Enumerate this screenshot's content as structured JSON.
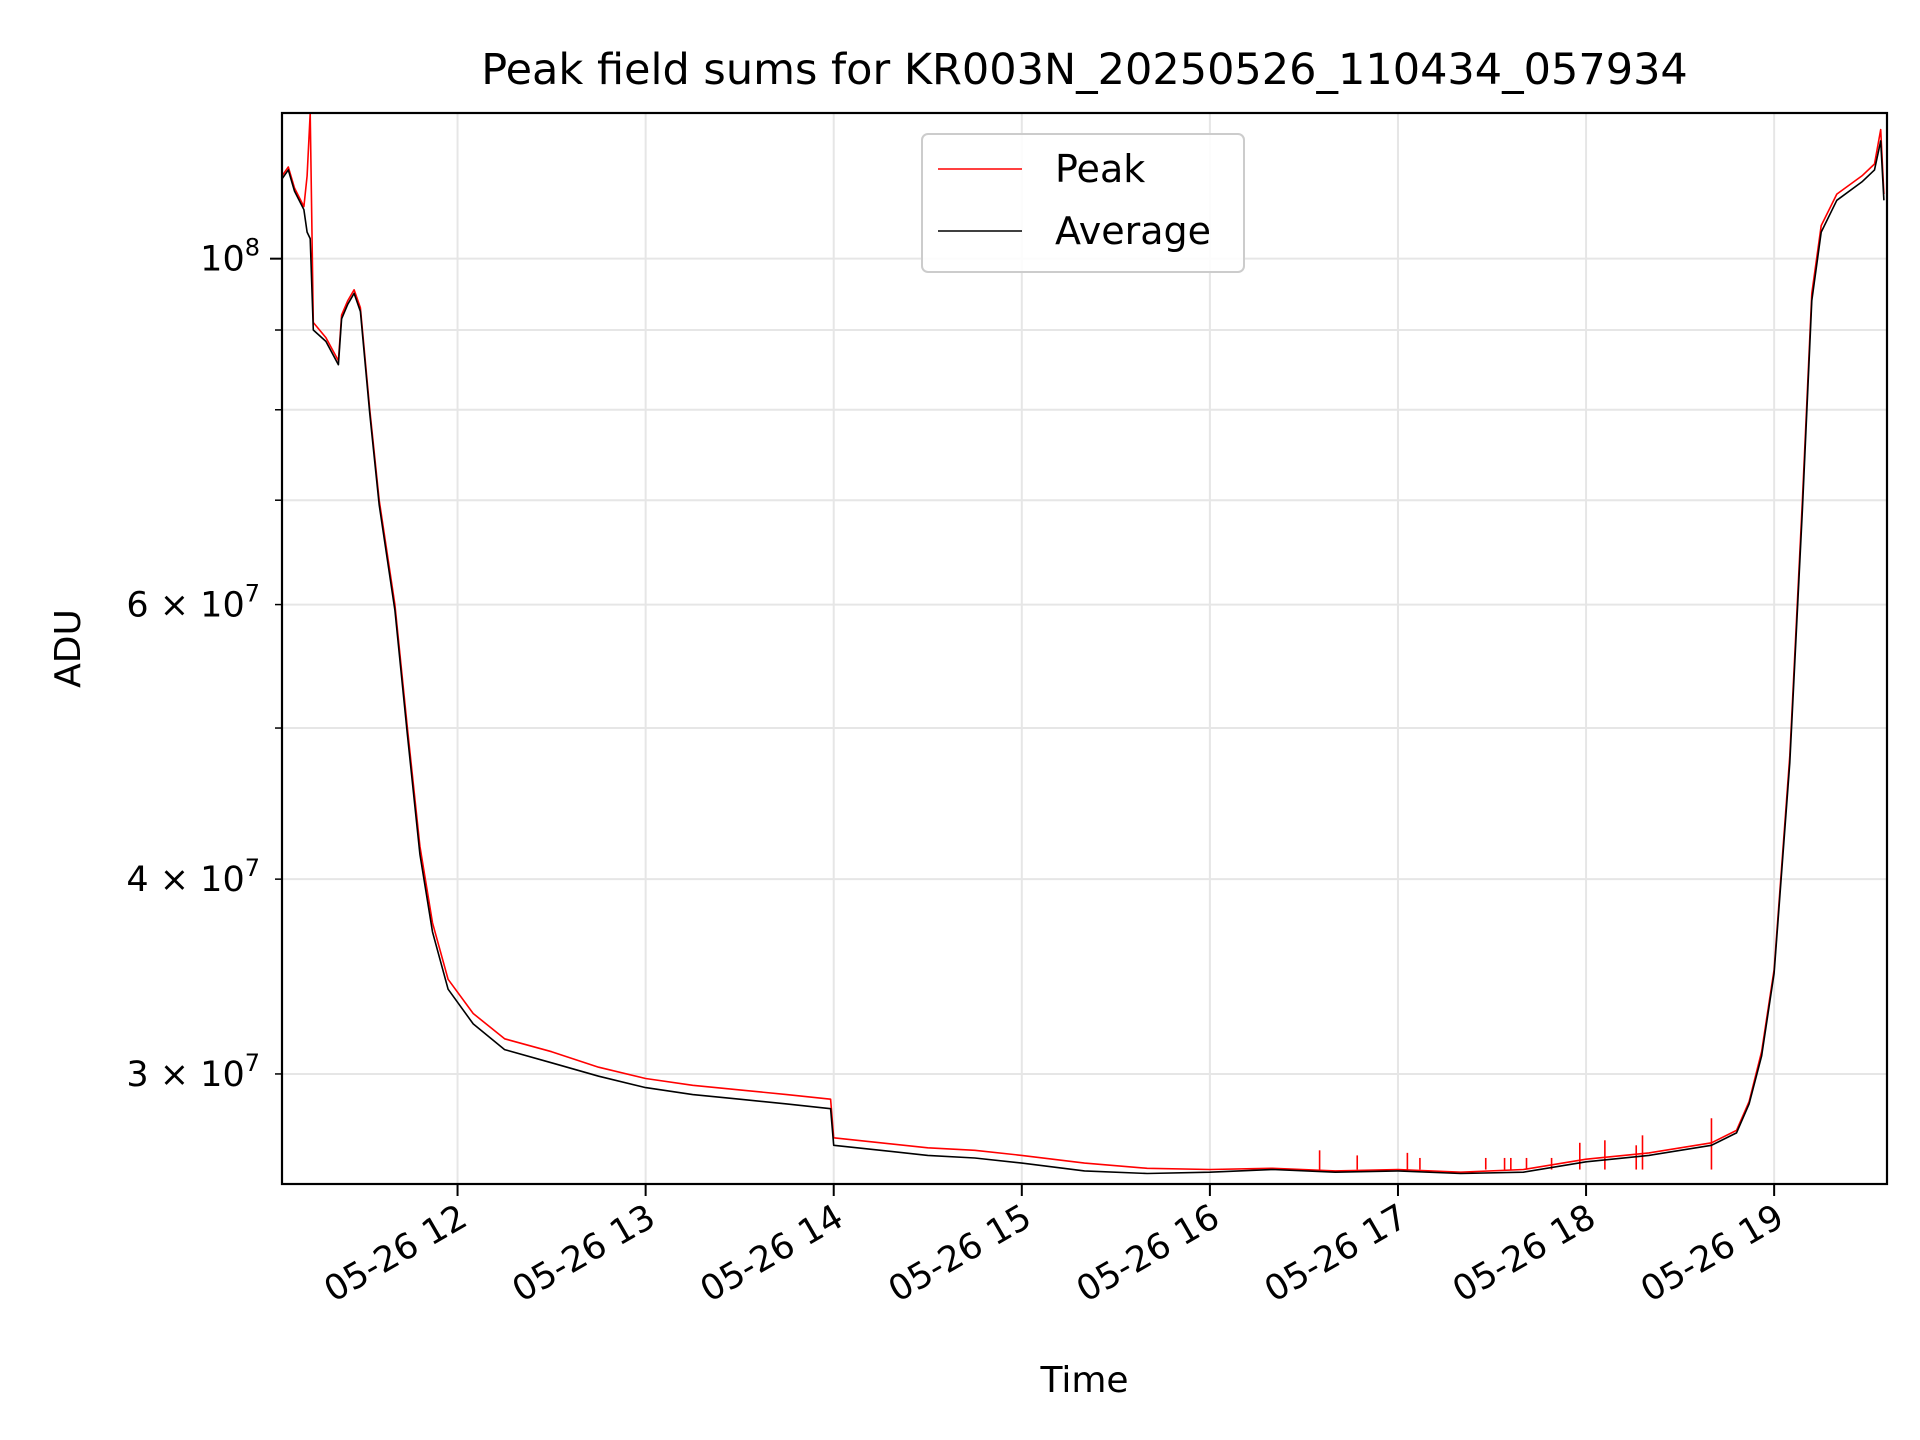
{
  "chart_data": {
    "type": "line",
    "title": "Peak field sums for KR003N_20250526_110434_057934",
    "xlabel": "Time",
    "ylabel": "ADU",
    "y_scale": "log",
    "grid": true,
    "legend_position": "top-center",
    "xlim": [
      "2025-05-26 11:04",
      "2025-05-26 19:36"
    ],
    "ylim": [
      25500000,
      124000000
    ],
    "x_ticks": [
      "05-26 12",
      "05-26 13",
      "05-26 14",
      "05-26 15",
      "05-26 16",
      "05-26 17",
      "05-26 18",
      "05-26 19"
    ],
    "x_tick_times": [
      "2025-05-26 12:00",
      "2025-05-26 13:00",
      "2025-05-26 14:00",
      "2025-05-26 15:00",
      "2025-05-26 16:00",
      "2025-05-26 17:00",
      "2025-05-26 18:00",
      "2025-05-26 19:00"
    ],
    "y_ticks_major": [
      {
        "value": 100000000,
        "base": "10",
        "exp": "8"
      }
    ],
    "y_ticks_minor": [
      {
        "value": 30000000,
        "mant": "3",
        "exp": "7"
      },
      {
        "value": 40000000,
        "mant": "4",
        "exp": "7"
      },
      {
        "value": 50000000
      },
      {
        "value": 60000000,
        "mant": "6",
        "exp": "7"
      },
      {
        "value": 70000000
      },
      {
        "value": 80000000
      },
      {
        "value": 90000000
      }
    ],
    "series": [
      {
        "name": "Peak",
        "color": "#ff0000",
        "points": [
          [
            "2025-05-26 11:04",
            113000000
          ],
          [
            "2025-05-26 11:06",
            114500000
          ],
          [
            "2025-05-26 11:08",
            111000000
          ],
          [
            "2025-05-26 11:11",
            108000000
          ],
          [
            "2025-05-26 11:12",
            113000000
          ],
          [
            "2025-05-26 11:13",
            124000000
          ],
          [
            "2025-05-26 11:14",
            91000000
          ],
          [
            "2025-05-26 11:18",
            89000000
          ],
          [
            "2025-05-26 11:22",
            86000000
          ],
          [
            "2025-05-26 11:23",
            92000000
          ],
          [
            "2025-05-26 11:25",
            94000000
          ],
          [
            "2025-05-26 11:27",
            95500000
          ],
          [
            "2025-05-26 11:29",
            93000000
          ],
          [
            "2025-05-26 11:32",
            80000000
          ],
          [
            "2025-05-26 11:35",
            70000000
          ],
          [
            "2025-05-26 11:40",
            60000000
          ],
          [
            "2025-05-26 11:44",
            50000000
          ],
          [
            "2025-05-26 11:48",
            42000000
          ],
          [
            "2025-05-26 11:52",
            37500000
          ],
          [
            "2025-05-26 11:57",
            34500000
          ],
          [
            "2025-05-26 12:05",
            32800000
          ],
          [
            "2025-05-26 12:15",
            31600000
          ],
          [
            "2025-05-26 12:30",
            31000000
          ],
          [
            "2025-05-26 12:45",
            30300000
          ],
          [
            "2025-05-26 13:00",
            29800000
          ],
          [
            "2025-05-26 13:15",
            29500000
          ],
          [
            "2025-05-26 13:30",
            29300000
          ],
          [
            "2025-05-26 13:45",
            29100000
          ],
          [
            "2025-05-26 13:59",
            28900000
          ],
          [
            "2025-05-26 14:00",
            27300000
          ],
          [
            "2025-05-26 14:15",
            27100000
          ],
          [
            "2025-05-26 14:30",
            26900000
          ],
          [
            "2025-05-26 14:45",
            26800000
          ],
          [
            "2025-05-26 15:00",
            26600000
          ],
          [
            "2025-05-26 15:20",
            26300000
          ],
          [
            "2025-05-26 15:40",
            26100000
          ],
          [
            "2025-05-26 16:00",
            26050000
          ],
          [
            "2025-05-26 16:20",
            26100000
          ],
          [
            "2025-05-26 16:40",
            26000000
          ],
          [
            "2025-05-26 17:00",
            26050000
          ],
          [
            "2025-05-26 17:20",
            25950000
          ],
          [
            "2025-05-26 17:40",
            26050000
          ],
          [
            "2025-05-26 18:00",
            26450000
          ],
          [
            "2025-05-26 18:20",
            26700000
          ],
          [
            "2025-05-26 18:40",
            27100000
          ],
          [
            "2025-05-26 18:48",
            27600000
          ],
          [
            "2025-05-26 18:52",
            28800000
          ],
          [
            "2025-05-26 18:56",
            31000000
          ],
          [
            "2025-05-26 19:00",
            35000000
          ],
          [
            "2025-05-26 19:05",
            48000000
          ],
          [
            "2025-05-26 19:09",
            70000000
          ],
          [
            "2025-05-26 19:12",
            95000000
          ],
          [
            "2025-05-26 19:15",
            105000000
          ],
          [
            "2025-05-26 19:20",
            110000000
          ],
          [
            "2025-05-26 19:28",
            113000000
          ],
          [
            "2025-05-26 19:32",
            115000000
          ],
          [
            "2025-05-26 19:34",
            121000000
          ],
          [
            "2025-05-26 19:35",
            110000000
          ]
        ],
        "spikes": [
          [
            "2025-05-26 16:35",
            26800000
          ],
          [
            "2025-05-26 16:47",
            26600000
          ],
          [
            "2025-05-26 17:03",
            26700000
          ],
          [
            "2025-05-26 17:07",
            26500000
          ],
          [
            "2025-05-26 17:28",
            26500000
          ],
          [
            "2025-05-26 17:34",
            26500000
          ],
          [
            "2025-05-26 17:36",
            26500000
          ],
          [
            "2025-05-26 17:41",
            26500000
          ],
          [
            "2025-05-26 17:49",
            26500000
          ],
          [
            "2025-05-26 17:58",
            27100000
          ],
          [
            "2025-05-26 18:06",
            27200000
          ],
          [
            "2025-05-26 18:16",
            27000000
          ],
          [
            "2025-05-26 18:18",
            27400000
          ],
          [
            "2025-05-26 18:40",
            28100000
          ]
        ]
      },
      {
        "name": "Average",
        "color": "#000000",
        "points": [
          [
            "2025-05-26 11:04",
            112500000
          ],
          [
            "2025-05-26 11:06",
            114000000
          ],
          [
            "2025-05-26 11:08",
            110500000
          ],
          [
            "2025-05-26 11:11",
            107500000
          ],
          [
            "2025-05-26 11:12",
            104000000
          ],
          [
            "2025-05-26 11:13",
            103000000
          ],
          [
            "2025-05-26 11:14",
            90000000
          ],
          [
            "2025-05-26 11:18",
            88500000
          ],
          [
            "2025-05-26 11:22",
            85500000
          ],
          [
            "2025-05-26 11:23",
            91500000
          ],
          [
            "2025-05-26 11:25",
            93500000
          ],
          [
            "2025-05-26 11:27",
            95000000
          ],
          [
            "2025-05-26 11:29",
            92500000
          ],
          [
            "2025-05-26 11:32",
            79500000
          ],
          [
            "2025-05-26 11:35",
            69500000
          ],
          [
            "2025-05-26 11:40",
            59500000
          ],
          [
            "2025-05-26 11:44",
            49500000
          ],
          [
            "2025-05-26 11:48",
            41500000
          ],
          [
            "2025-05-26 11:52",
            37000000
          ],
          [
            "2025-05-26 11:57",
            34000000
          ],
          [
            "2025-05-26 12:05",
            32300000
          ],
          [
            "2025-05-26 12:15",
            31100000
          ],
          [
            "2025-05-26 12:30",
            30500000
          ],
          [
            "2025-05-26 12:45",
            29900000
          ],
          [
            "2025-05-26 13:00",
            29400000
          ],
          [
            "2025-05-26 13:15",
            29100000
          ],
          [
            "2025-05-26 13:30",
            28900000
          ],
          [
            "2025-05-26 13:45",
            28700000
          ],
          [
            "2025-05-26 13:59",
            28500000
          ],
          [
            "2025-05-26 14:00",
            27000000
          ],
          [
            "2025-05-26 14:15",
            26800000
          ],
          [
            "2025-05-26 14:30",
            26600000
          ],
          [
            "2025-05-26 14:45",
            26500000
          ],
          [
            "2025-05-26 15:00",
            26300000
          ],
          [
            "2025-05-26 15:20",
            26000000
          ],
          [
            "2025-05-26 15:40",
            25900000
          ],
          [
            "2025-05-26 16:00",
            25950000
          ],
          [
            "2025-05-26 16:20",
            26050000
          ],
          [
            "2025-05-26 16:40",
            25950000
          ],
          [
            "2025-05-26 17:00",
            26000000
          ],
          [
            "2025-05-26 17:20",
            25900000
          ],
          [
            "2025-05-26 17:40",
            25950000
          ],
          [
            "2025-05-26 18:00",
            26350000
          ],
          [
            "2025-05-26 18:20",
            26600000
          ],
          [
            "2025-05-26 18:40",
            27000000
          ],
          [
            "2025-05-26 18:48",
            27500000
          ],
          [
            "2025-05-26 18:52",
            28700000
          ],
          [
            "2025-05-26 18:56",
            30800000
          ],
          [
            "2025-05-26 19:00",
            34800000
          ],
          [
            "2025-05-26 19:05",
            47500000
          ],
          [
            "2025-05-26 19:09",
            69000000
          ],
          [
            "2025-05-26 19:12",
            94000000
          ],
          [
            "2025-05-26 19:15",
            104000000
          ],
          [
            "2025-05-26 19:20",
            109000000
          ],
          [
            "2025-05-26 19:28",
            112000000
          ],
          [
            "2025-05-26 19:32",
            114000000
          ],
          [
            "2025-05-26 19:34",
            119000000
          ],
          [
            "2025-05-26 19:35",
            109000000
          ]
        ]
      }
    ]
  }
}
